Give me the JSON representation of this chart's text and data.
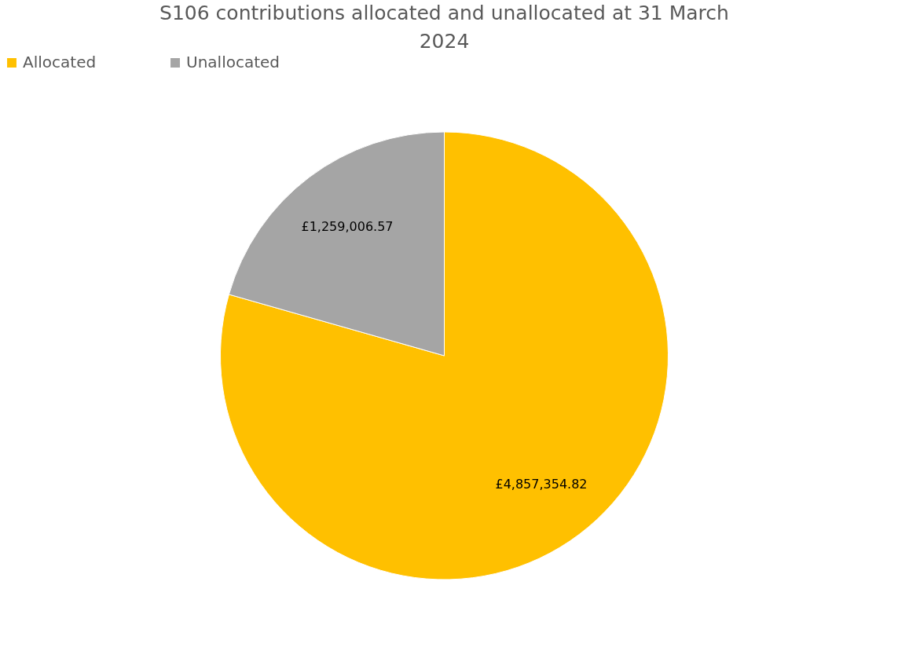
{
  "chart_data": {
    "type": "pie",
    "title": "S106 contributions allocated and unallocated at 31 March 2024",
    "categories": [
      "Allocated",
      "Unallocated"
    ],
    "values": [
      4857354.82,
      1259006.57
    ],
    "colors": [
      "#ffc000",
      "#a5a5a5"
    ],
    "value_labels": [
      "£4,857,354.82",
      "£1,259,006.57"
    ],
    "legend": "top"
  }
}
